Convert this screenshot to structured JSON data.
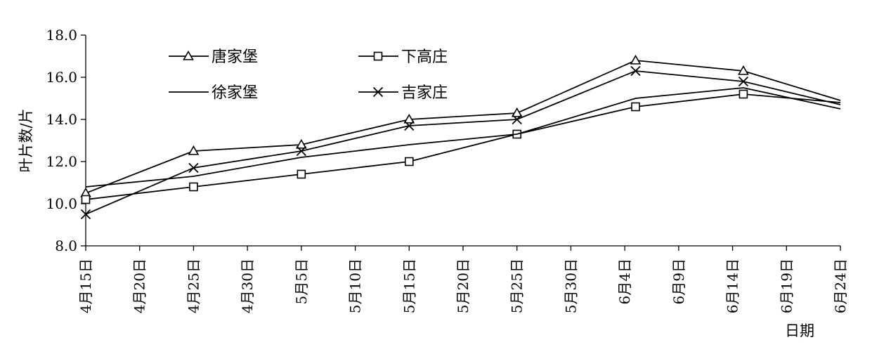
{
  "chart_data": {
    "type": "line",
    "title": "",
    "xlabel": "日期",
    "ylabel": "叶片数/片",
    "ylim": [
      8.0,
      18.0
    ],
    "yticks": [
      "8.0",
      "10.0",
      "12.0",
      "14.0",
      "16.0",
      "18.0"
    ],
    "xlim": [
      "2000-04-15",
      "2000-06-24"
    ],
    "xtick_labels": [
      "4月15日",
      "4月20日",
      "4月25日",
      "4月30日",
      "5月5日",
      "5月10日",
      "5月15日",
      "5月20日",
      "5月25日",
      "5月30日",
      "6月4日",
      "6月9日",
      "6月14日",
      "6月19日",
      "6月24日"
    ],
    "legend_position": "top-left (inside plot, two columns)",
    "grid": false,
    "series": [
      {
        "name": "唐家堡",
        "marker": "triangle",
        "x": [
          "2000-04-15",
          "2000-04-25",
          "2000-05-05",
          "2000-05-15",
          "2000-05-25",
          "2000-06-05",
          "2000-06-15",
          "2000-06-24"
        ],
        "values": [
          10.5,
          12.5,
          12.8,
          14.0,
          14.3,
          16.8,
          16.3,
          14.9
        ]
      },
      {
        "name": "下高庄",
        "marker": "square",
        "x": [
          "2000-04-15",
          "2000-04-25",
          "2000-05-05",
          "2000-05-15",
          "2000-05-25",
          "2000-06-05",
          "2000-06-15",
          "2000-06-24"
        ],
        "values": [
          10.2,
          10.8,
          11.4,
          12.0,
          13.3,
          14.6,
          15.2,
          14.8
        ]
      },
      {
        "name": "徐家堡",
        "marker": "none",
        "x": [
          "2000-04-15",
          "2000-04-25",
          "2000-05-05",
          "2000-05-15",
          "2000-05-25",
          "2000-06-05",
          "2000-06-15",
          "2000-06-24"
        ],
        "values": [
          10.8,
          11.3,
          12.2,
          12.8,
          13.3,
          15.0,
          15.5,
          14.5
        ]
      },
      {
        "name": "吉家庄",
        "marker": "x",
        "x": [
          "2000-04-15",
          "2000-04-25",
          "2000-05-05",
          "2000-05-15",
          "2000-05-25",
          "2000-06-05",
          "2000-06-15",
          "2000-06-24"
        ],
        "values": [
          9.5,
          11.7,
          12.5,
          13.7,
          14.0,
          16.3,
          15.8,
          14.7
        ]
      }
    ]
  }
}
